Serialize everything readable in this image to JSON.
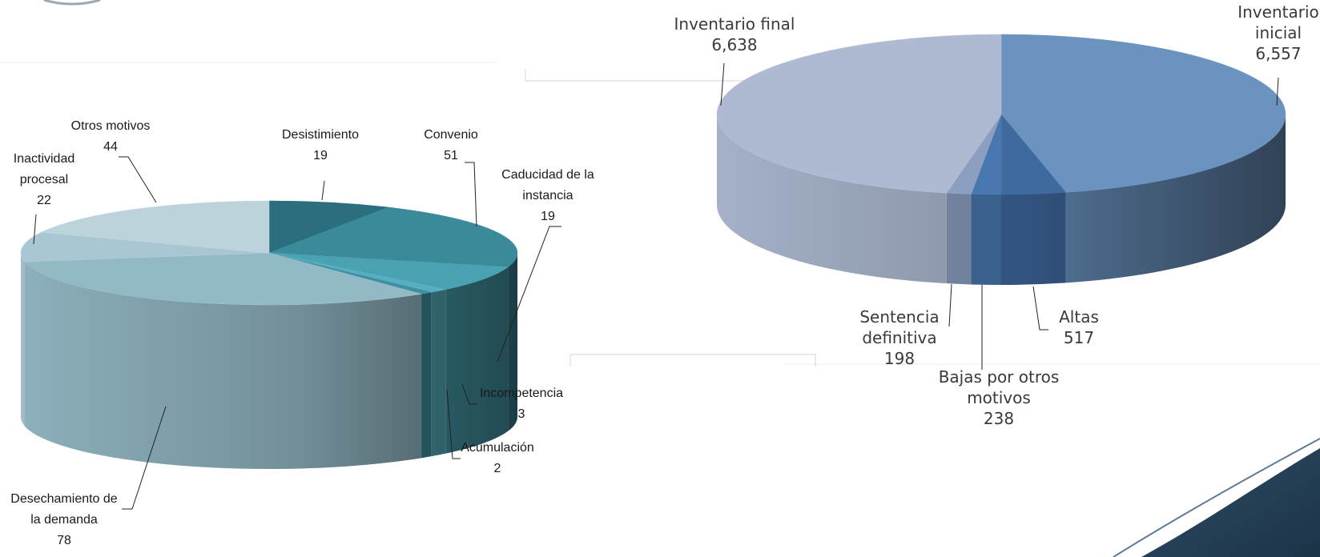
{
  "chart_data": [
    {
      "type": "pie",
      "style": "3d",
      "categories": [
        "Desistimiento",
        "Convenio",
        "Caducidad de la instancia",
        "Incompetencia",
        "Acumulación",
        "Desechamiento de la demanda",
        "Inactividad procesal",
        "Otros motivos"
      ],
      "values": [
        19,
        51,
        19,
        3,
        2,
        78,
        22,
        44
      ],
      "value_labels": [
        "19",
        "51",
        "19",
        "3",
        "2",
        "78",
        "22",
        "44"
      ],
      "label_lines": [
        [
          "Desistimiento"
        ],
        [
          "Convenio"
        ],
        [
          "Caducidad de la",
          "instancia"
        ],
        [
          "Incompetencia"
        ],
        [
          "Acumulación"
        ],
        [
          "Desechamiento de",
          "la demanda"
        ],
        [
          "Inactividad",
          "procesal"
        ],
        [
          "Otros motivos"
        ]
      ],
      "colors": [
        "#2b6f7f",
        "#3a8a9a",
        "#4aa1b2",
        "#56aec0",
        "#3f8f9f",
        "#93b9c6",
        "#a9c7d2",
        "#bcd3dc"
      ]
    },
    {
      "type": "pie",
      "style": "3d",
      "categories": [
        "Inventario inicial",
        "Altas",
        "Bajas por otros motivos",
        "Sentencia definitiva",
        "Inventario final"
      ],
      "values": [
        6557,
        517,
        238,
        198,
        6638
      ],
      "value_labels": [
        "6,557",
        "517",
        "238",
        "198",
        "6,638"
      ],
      "label_lines": [
        [
          "Inventario",
          "inicial"
        ],
        [
          "Altas"
        ],
        [
          "Bajas por otros",
          "motivos"
        ],
        [
          "Sentencia",
          "definitiva"
        ],
        [
          "Inventario final"
        ]
      ],
      "colors": [
        "#6b93c0",
        "#3f6aa0",
        "#4877b0",
        "#8c9fc0",
        "#adbad2"
      ]
    }
  ]
}
